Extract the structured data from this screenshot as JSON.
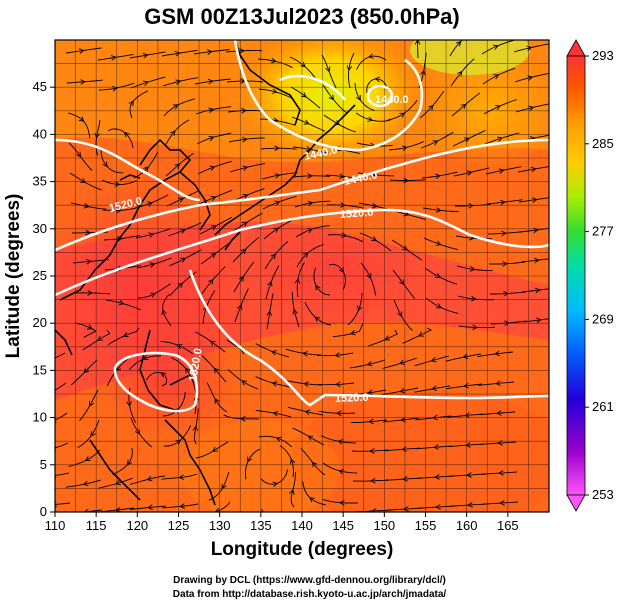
{
  "title": "GSM 00Z13Jul2023 (850.0hPa)",
  "xlabel": "Longitude (degrees)",
  "ylabel": "Latitude  (degrees)",
  "xticks": [
    "110",
    "115",
    "120",
    "125",
    "130",
    "135",
    "140",
    "145",
    "150",
    "155",
    "160",
    "165"
  ],
  "yticks": [
    "0",
    "5",
    "10",
    "15",
    "20",
    "25",
    "30",
    "35",
    "40",
    "45"
  ],
  "colorbar": {
    "ticks": [
      "293",
      "285",
      "277",
      "269",
      "261",
      "253"
    ]
  },
  "contour_labels": [
    "1520.0",
    "1440.0",
    "1520.0",
    "1440.0",
    "1520.0",
    "1520.0",
    "1440.0"
  ],
  "credits": {
    "line1": "Drawing by DCL (https://www.gfd-dennou.org/library/dcl/)",
    "line2": "Data from http://database.rish.kyoto-u.ac.jp/arch/jmadata/"
  },
  "chart_data": {
    "type": "heatmap",
    "title": "GSM 00Z13Jul2023 (850.0hPa)",
    "xlabel": "Longitude (degrees)",
    "ylabel": "Latitude  (degrees)",
    "xlim": [
      110,
      170
    ],
    "ylim": [
      0,
      50
    ],
    "color_range": [
      253,
      293
    ],
    "colormap": [
      "#ff55ff",
      "#9900cc",
      "#2200dd",
      "#0066ff",
      "#00bbff",
      "#00ddaa",
      "#33dd33",
      "#aaee00",
      "#ffcc00",
      "#ff9900",
      "#ff5500",
      "#ff3333"
    ],
    "contour_levels": [
      1440.0,
      1520.0
    ],
    "features": "temperature shading with geopotential height contours (white) and wind streamlines (black), coastlines"
  }
}
